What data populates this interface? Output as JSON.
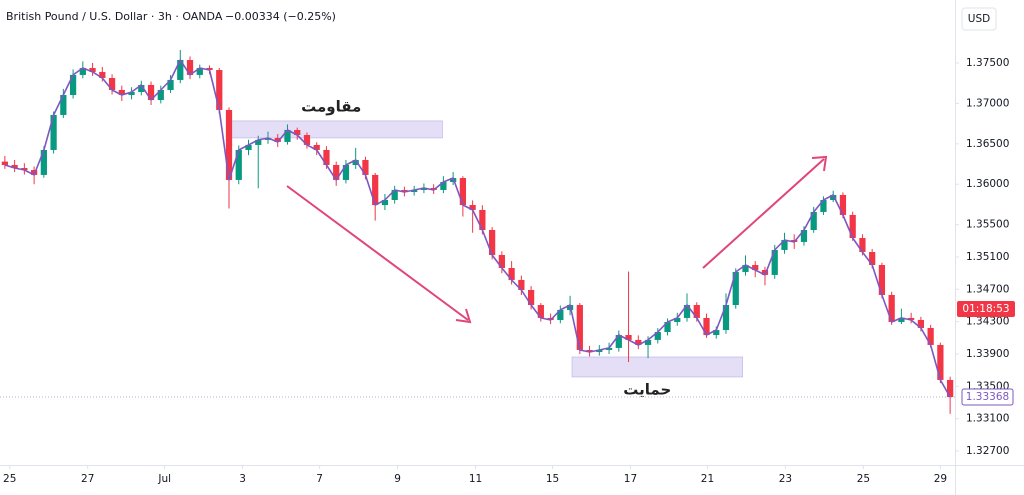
{
  "chart_data": {
    "type": "candlestick",
    "title": "British Pound / U.S. Dollar · 3h · OANDA",
    "subtitle": "−0.00334 (−0.25%)",
    "unit": "USD",
    "countdown": "01:18:53",
    "up_color": "#089981",
    "down_color": "#f23645",
    "ma_color": "#7e57c2",
    "grid": false,
    "xlim": [
      0,
      98
    ],
    "xticks": [
      {
        "value": 1.0,
        "label": "25"
      },
      {
        "value": 9.0,
        "label": "27"
      },
      {
        "value": 16.9,
        "label": "Jul"
      },
      {
        "value": 24.9,
        "label": "3"
      },
      {
        "value": 32.8,
        "label": "7"
      },
      {
        "value": 40.8,
        "label": "9"
      },
      {
        "value": 48.8,
        "label": "11"
      },
      {
        "value": 56.7,
        "label": "15"
      },
      {
        "value": 64.7,
        "label": "17"
      },
      {
        "value": 72.6,
        "label": "21"
      },
      {
        "value": 80.6,
        "label": "23"
      },
      {
        "value": 88.6,
        "label": "25"
      },
      {
        "value": 96.5,
        "label": "29"
      }
    ],
    "ylim": [
      1.32527,
      1.38279
    ],
    "yticks": [
      {
        "value": 1.375,
        "label": "1.37500"
      },
      {
        "value": 1.37,
        "label": "1.37000"
      },
      {
        "value": 1.365,
        "label": "1.36500"
      },
      {
        "value": 1.36,
        "label": "1.36000"
      },
      {
        "value": 1.355,
        "label": "1.35500"
      },
      {
        "value": 1.351,
        "label": "1.35100"
      },
      {
        "value": 1.347,
        "label": "1.34700"
      },
      {
        "value": 1.343,
        "label": "1.34300"
      },
      {
        "value": 1.339,
        "label": "1.33900"
      },
      {
        "value": 1.335,
        "label": "1.33500"
      },
      {
        "value": 1.331,
        "label": "1.33100"
      },
      {
        "value": 1.327,
        "label": "1.32700"
      }
    ],
    "open": [
      1.3628,
      1.36238,
      1.36201,
      1.36176,
      1.36115,
      1.36424,
      1.36857,
      1.37104,
      1.37352,
      1.37438,
      1.37389,
      1.37314,
      1.37166,
      1.37104,
      1.37141,
      1.37228,
      1.37042,
      1.37166,
      1.3729,
      1.37537,
      1.37352,
      1.37438,
      1.37413,
      1.36919,
      1.36053,
      1.36424,
      1.36486,
      1.36548,
      1.36572,
      1.36523,
      1.36671,
      1.36609,
      1.36486,
      1.36424,
      1.36238,
      1.36053,
      1.36238,
      1.363,
      1.36115,
      1.35743,
      1.35805,
      1.35929,
      1.35904,
      1.35929,
      1.35954,
      1.35929,
      1.36028,
      1.36077,
      1.35743,
      1.35682,
      1.35434,
      1.35125,
      1.34964,
      1.34816,
      1.34692,
      1.34506,
      1.34346,
      1.34321,
      1.34445,
      1.34506,
      1.3395,
      1.33925,
      1.3395,
      1.33975,
      1.34135,
      1.34074,
      1.34012,
      1.34074,
      1.34172,
      1.34296,
      1.34346,
      1.34506,
      1.34346,
      1.34135,
      1.34197,
      1.34506,
      1.34915,
      1.35001,
      1.34939,
      1.34878,
      1.35187,
      1.3531,
      1.35286,
      1.35434,
      1.35657,
      1.35805,
      1.35867,
      1.3562,
      1.35335,
      1.35162,
      1.35001,
      1.3463,
      1.34296,
      1.34346,
      1.34321,
      1.34222,
      1.34012,
      1.33579
    ],
    "high": [
      1.3635,
      1.363,
      1.3626,
      1.3622,
      1.3647,
      1.369,
      1.3718,
      1.3742,
      1.3752,
      1.375,
      1.3745,
      1.3736,
      1.3722,
      1.372,
      1.3728,
      1.3727,
      1.3722,
      1.3735,
      1.3766,
      1.3758,
      1.3748,
      1.3747,
      1.3744,
      1.3695,
      1.3648,
      1.3655,
      1.366,
      1.3665,
      1.3662,
      1.3674,
      1.367,
      1.3664,
      1.3652,
      1.3647,
      1.3628,
      1.363,
      1.3645,
      1.3634,
      1.3614,
      1.3588,
      1.3598,
      1.3597,
      1.3598,
      1.3601,
      1.36,
      1.361,
      1.3615,
      1.361,
      1.358,
      1.3574,
      1.3547,
      1.3517,
      1.3505,
      1.3487,
      1.3474,
      1.3453,
      1.344,
      1.345,
      1.3462,
      1.3453,
      1.34,
      1.3401,
      1.3404,
      1.3419,
      1.3492,
      1.3413,
      1.3412,
      1.3422,
      1.3434,
      1.3441,
      1.3465,
      1.3454,
      1.344,
      1.3424,
      1.3465,
      1.3496,
      1.3512,
      1.3505,
      1.3498,
      1.3525,
      1.354,
      1.3538,
      1.3548,
      1.3572,
      1.3585,
      1.3592,
      1.359,
      1.3566,
      1.3538,
      1.352,
      1.3503,
      1.3467,
      1.3446,
      1.3441,
      1.3436,
      1.3426,
      1.3404,
      1.3362
    ],
    "low": [
      1.3619,
      1.3615,
      1.3612,
      1.36,
      1.3608,
      1.3638,
      1.3682,
      1.3706,
      1.3731,
      1.3734,
      1.3727,
      1.3711,
      1.3703,
      1.3705,
      1.371,
      1.3698,
      1.37,
      1.3713,
      1.3725,
      1.373,
      1.3731,
      1.3736,
      1.3687,
      1.357,
      1.36,
      1.3636,
      1.3595,
      1.365,
      1.3646,
      1.3649,
      1.3655,
      1.3644,
      1.3636,
      1.3619,
      1.3598,
      1.3601,
      1.3619,
      1.3606,
      1.3555,
      1.3568,
      1.3576,
      1.3585,
      1.3586,
      1.3589,
      1.3588,
      1.3589,
      1.3599,
      1.356,
      1.354,
      1.3538,
      1.3507,
      1.349,
      1.3476,
      1.3463,
      1.3445,
      1.343,
      1.3427,
      1.3428,
      1.3438,
      1.339,
      1.3387,
      1.3388,
      1.339,
      1.3393,
      1.338,
      1.3396,
      1.3385,
      1.3403,
      1.3413,
      1.3425,
      1.343,
      1.343,
      1.341,
      1.3409,
      1.3415,
      1.3446,
      1.3487,
      1.3485,
      1.3475,
      1.3483,
      1.3514,
      1.352,
      1.3524,
      1.354,
      1.3562,
      1.3578,
      1.3558,
      1.353,
      1.3512,
      1.3496,
      1.3459,
      1.3426,
      1.3427,
      1.3428,
      1.3418,
      1.3398,
      1.3354,
      1.3316
    ],
    "close": [
      1.36238,
      1.36201,
      1.36176,
      1.36115,
      1.36424,
      1.36857,
      1.37104,
      1.37352,
      1.37438,
      1.37389,
      1.37314,
      1.37166,
      1.37104,
      1.37141,
      1.37228,
      1.37042,
      1.37166,
      1.3729,
      1.37537,
      1.37352,
      1.37438,
      1.37413,
      1.36919,
      1.36053,
      1.36424,
      1.36486,
      1.36548,
      1.36572,
      1.36523,
      1.36671,
      1.36609,
      1.36486,
      1.36424,
      1.36238,
      1.36053,
      1.36238,
      1.363,
      1.36115,
      1.35743,
      1.35805,
      1.35929,
      1.35904,
      1.35929,
      1.35954,
      1.35929,
      1.36028,
      1.36077,
      1.35743,
      1.35682,
      1.35434,
      1.35125,
      1.34964,
      1.34816,
      1.34692,
      1.34506,
      1.34346,
      1.34321,
      1.34445,
      1.34506,
      1.3395,
      1.33925,
      1.3395,
      1.33975,
      1.34135,
      1.34074,
      1.34012,
      1.34074,
      1.34172,
      1.34296,
      1.34346,
      1.34506,
      1.34346,
      1.34135,
      1.34197,
      1.34506,
      1.34915,
      1.35001,
      1.34939,
      1.34878,
      1.35187,
      1.3531,
      1.35286,
      1.35434,
      1.35657,
      1.35805,
      1.35867,
      1.3562,
      1.35335,
      1.35162,
      1.35001,
      1.3463,
      1.34296,
      1.34346,
      1.34321,
      1.34222,
      1.34012,
      1.33579,
      1.33368
    ],
    "annotations": [
      {
        "text": "مقاومت",
        "x": [
          23.4,
          45.4
        ],
        "y": [
          1.36573,
          1.36783
        ],
        "color": "#d9d2f2"
      },
      {
        "text": "حمایت",
        "x": [
          58.7,
          76.2
        ],
        "y": [
          1.33616,
          1.33863
        ],
        "color": "#d9d2f2"
      }
    ]
  }
}
